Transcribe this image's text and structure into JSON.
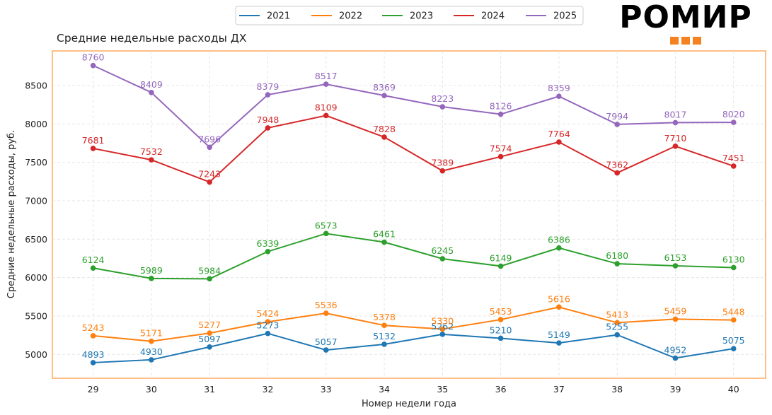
{
  "chart_data": {
    "type": "line",
    "title": "Средние недельные расходы ДХ",
    "xlabel": "Номер недели года",
    "ylabel": "Средние недельные расходы, руб.",
    "x": [
      29,
      30,
      31,
      32,
      33,
      34,
      35,
      36,
      37,
      38,
      39,
      40
    ],
    "xlim": [
      28.3,
      40.55
    ],
    "ylim": [
      4690,
      8950
    ],
    "yticks": [
      5000,
      5500,
      6000,
      6500,
      7000,
      7500,
      8000,
      8500
    ],
    "grid": true,
    "legend_position": "top-center",
    "frame_color": "#ff7f0e",
    "series": [
      {
        "name": "2021",
        "color": "#1f77b4",
        "values": [
          4893,
          4930,
          5097,
          5273,
          5057,
          5132,
          5262,
          5210,
          5149,
          5255,
          4952,
          5075
        ]
      },
      {
        "name": "2022",
        "color": "#ff7f0e",
        "values": [
          5243,
          5171,
          5277,
          5424,
          5536,
          5378,
          5330,
          5453,
          5616,
          5413,
          5459,
          5448
        ]
      },
      {
        "name": "2023",
        "color": "#2ca02c",
        "values": [
          6124,
          5989,
          5984,
          6339,
          6573,
          6461,
          6245,
          6149,
          6386,
          6180,
          6153,
          6130
        ]
      },
      {
        "name": "2024",
        "color": "#d62728",
        "values": [
          7681,
          7532,
          7243,
          7948,
          8109,
          7828,
          7389,
          7574,
          7764,
          7362,
          7710,
          7451
        ]
      },
      {
        "name": "2025",
        "color": "#9467bd",
        "values": [
          8760,
          8409,
          7696,
          8379,
          8517,
          8369,
          8223,
          8126,
          8359,
          7994,
          8017,
          8020
        ]
      }
    ]
  },
  "brand": {
    "logo_text": "РОМИР",
    "accent_color": "#f58220"
  }
}
